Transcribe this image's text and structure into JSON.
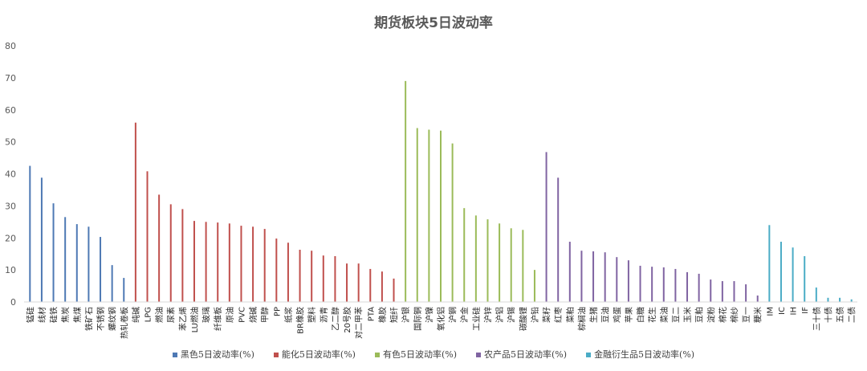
{
  "chart_data": {
    "type": "bar",
    "title": "期货板块5日波动率",
    "ylim": [
      0,
      80
    ],
    "yticks": [
      0,
      10,
      20,
      30,
      40,
      50,
      60,
      70,
      80
    ],
    "grid": false,
    "legend_position": "bottom",
    "series": [
      {
        "name": "黑色5日波动率(%)",
        "color": "#4e79b4",
        "categories": [
          "锰硅",
          "线材",
          "硅铁",
          "焦炭",
          "焦煤",
          "铁矿石",
          "不锈钢",
          "螺纹钢",
          "热轧卷板"
        ],
        "values": [
          42.5,
          38.8,
          30.8,
          26.5,
          24.3,
          23.5,
          20.3,
          11.5,
          7.5
        ]
      },
      {
        "name": "能化5日波动率(%)",
        "color": "#c0504d",
        "categories": [
          "纯碱",
          "LPG",
          "燃油",
          "尿素",
          "苯乙烯",
          "LU燃油",
          "玻璃",
          "纤维板",
          "原油",
          "PVC",
          "烧碱",
          "甲醇",
          "PP",
          "纸浆",
          "BR橡胶",
          "塑料",
          "沥青",
          "乙二醇",
          "20号胶",
          "对二甲苯",
          "PTA",
          "橡胶",
          "短纤"
        ],
        "values": [
          56.0,
          40.8,
          33.5,
          30.5,
          29.0,
          25.3,
          25.0,
          24.8,
          24.5,
          23.8,
          23.5,
          22.8,
          19.8,
          18.5,
          16.3,
          16.0,
          14.5,
          14.3,
          12.0,
          12.0,
          10.3,
          9.5,
          7.3
        ]
      },
      {
        "name": "有色5日波动率(%)",
        "color": "#9bbb59",
        "categories": [
          "沪银",
          "国际铜",
          "沪镍",
          "氧化铝",
          "沪铜",
          "沪金",
          "工业硅",
          "沪锌",
          "沪铝",
          "沪锡",
          "碳酸锂",
          "沪铅"
        ],
        "values": [
          69.0,
          54.3,
          53.8,
          53.5,
          49.5,
          29.3,
          27.0,
          25.8,
          24.5,
          23.0,
          22.5,
          10.0
        ]
      },
      {
        "name": "农产品5日波动率(%)",
        "color": "#8064a2",
        "categories": [
          "菜籽",
          "红枣",
          "菜粕",
          "棕榈油",
          "生猪",
          "豆油",
          "鸡蛋",
          "苹果",
          "白糖",
          "花生",
          "菜油",
          "豆二",
          "玉米",
          "豆粕",
          "淀粉",
          "棉花",
          "棉纱",
          "豆一",
          "粳米"
        ],
        "values": [
          46.8,
          38.8,
          18.8,
          16.0,
          15.8,
          15.5,
          14.0,
          13.0,
          11.3,
          11.0,
          10.8,
          10.3,
          9.3,
          8.8,
          7.0,
          6.5,
          6.5,
          5.5,
          2.0
        ]
      },
      {
        "name": "金融衍生品5日波动率(%)",
        "color": "#4bacc6",
        "categories": [
          "IM",
          "IC",
          "IH",
          "IF",
          "三十债",
          "十债",
          "五债",
          "二债"
        ],
        "values": [
          24.0,
          18.8,
          17.0,
          14.3,
          4.5,
          1.3,
          1.3,
          0.8
        ]
      }
    ]
  }
}
